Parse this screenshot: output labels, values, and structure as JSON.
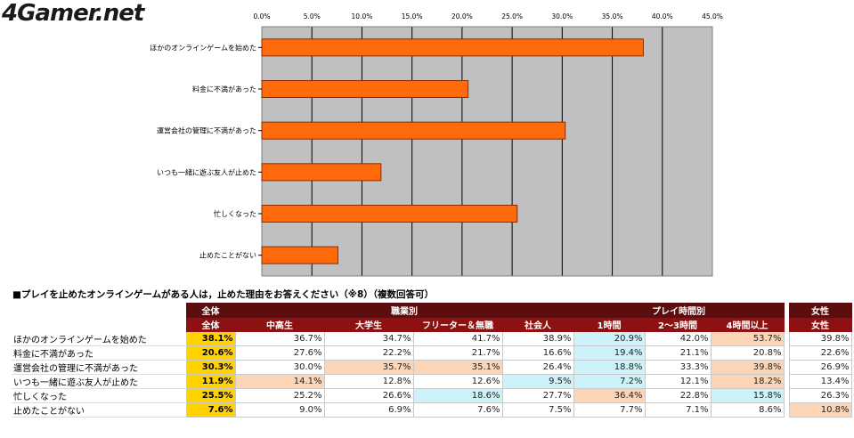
{
  "logo": "4Gamer.net",
  "chart_data": {
    "type": "bar",
    "orientation": "horizontal",
    "categories": [
      "ほかのオンラインゲームを始めた",
      "料金に不満があった",
      "運営会社の管理に不満があった",
      "いつも一緒に遊ぶ友人が止めた",
      "忙しくなった",
      "止めたことがない"
    ],
    "values": [
      38.1,
      20.6,
      30.3,
      11.9,
      25.5,
      7.6
    ],
    "xlim": [
      0,
      45
    ],
    "xticks": [
      "0.0%",
      "5.0%",
      "10.0%",
      "15.0%",
      "20.0%",
      "25.0%",
      "30.0%",
      "35.0%",
      "40.0%",
      "45.0%"
    ],
    "grid": true,
    "colors": {
      "bar": "#ff6a0d",
      "bar_edge": "#8a2a00",
      "plot_bg": "#c0c0c0"
    }
  },
  "table": {
    "title": "■プレイを止めたオンラインゲームがある人は，止めた理由をお答えください（※8）（複数回答可）",
    "groups": [
      {
        "label": "全体"
      },
      {
        "label": "職業別"
      },
      {
        "label": "プレイ時間別"
      },
      {
        "label": "女性"
      }
    ],
    "columns": [
      "全体",
      "中高生",
      "大学生",
      "フリーター＆無職",
      "社会人",
      "1時間",
      "2～3時間",
      "4時間以上",
      "女性"
    ],
    "rows": [
      {
        "label": "ほかのオンラインゲームを始めた",
        "cells": [
          "38.1%",
          "36.7%",
          "34.7%",
          "41.7%",
          "38.9%",
          "20.9%",
          "42.0%",
          "53.7%",
          "39.8%"
        ],
        "hl": [
          "tot",
          "",
          "",
          "",
          "",
          "lo",
          "",
          "hi",
          ""
        ]
      },
      {
        "label": "料金に不満があった",
        "cells": [
          "20.6%",
          "27.6%",
          "22.2%",
          "21.7%",
          "16.6%",
          "19.4%",
          "21.1%",
          "20.8%",
          "22.6%"
        ],
        "hl": [
          "tot",
          "",
          "",
          "",
          "",
          "lo",
          "",
          "",
          ""
        ]
      },
      {
        "label": "運営会社の管理に不満があった",
        "cells": [
          "30.3%",
          "30.0%",
          "35.7%",
          "35.1%",
          "26.4%",
          "18.8%",
          "33.3%",
          "39.8%",
          "26.9%"
        ],
        "hl": [
          "tot",
          "",
          "hi",
          "hi",
          "",
          "lo",
          "",
          "hi",
          ""
        ]
      },
      {
        "label": "いつも一緒に遊ぶ友人が止めた",
        "cells": [
          "11.9%",
          "14.1%",
          "12.8%",
          "12.6%",
          "9.5%",
          "7.2%",
          "12.1%",
          "18.2%",
          "13.4%"
        ],
        "hl": [
          "tot",
          "hi",
          "",
          "",
          "lo",
          "lo",
          "",
          "hi",
          ""
        ]
      },
      {
        "label": "忙しくなった",
        "cells": [
          "25.5%",
          "25.2%",
          "26.6%",
          "18.6%",
          "27.7%",
          "36.4%",
          "22.8%",
          "15.8%",
          "26.3%"
        ],
        "hl": [
          "tot",
          "",
          "",
          "lo",
          "",
          "hi",
          "",
          "lo",
          ""
        ]
      },
      {
        "label": "止めたことがない",
        "cells": [
          "7.6%",
          "9.0%",
          "6.9%",
          "7.6%",
          "7.5%",
          "7.7%",
          "7.1%",
          "8.6%",
          "10.8%"
        ],
        "hl": [
          "tot",
          "",
          "",
          "",
          "",
          "",
          "",
          "",
          "hi"
        ]
      }
    ]
  }
}
